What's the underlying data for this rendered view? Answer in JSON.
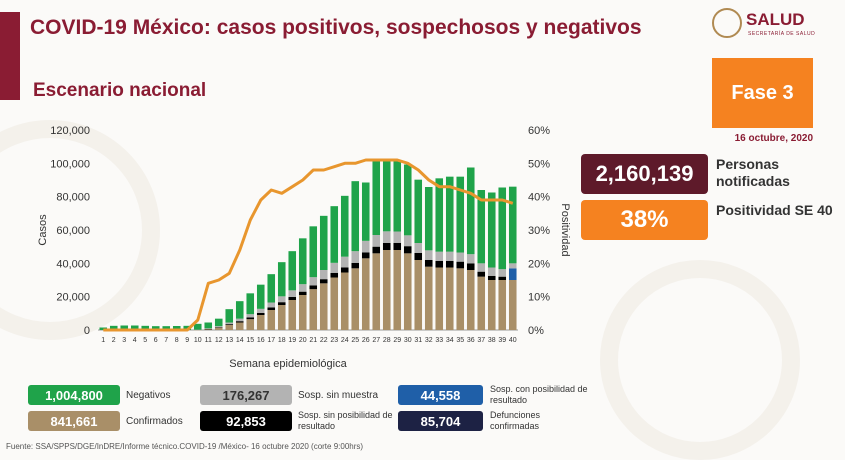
{
  "header": {
    "title": "COVID-19 México: casos positivos, sospechosos y negativos",
    "subtitle": "Escenario nacional",
    "logo_text": "SALUD",
    "logo_subtext": "SECRETARÍA DE SALUD",
    "phase_label": "Fase 3",
    "date": "16 octubre, 2020"
  },
  "kpis": [
    {
      "value": "2,160,139",
      "label": "Personas notificadas",
      "color": "#5e1a2a"
    },
    {
      "value": "38%",
      "label": "Positividad SE 40",
      "color": "#f58220"
    }
  ],
  "legend": [
    {
      "value": "1,004,800",
      "label": "Negativos",
      "color": "#1fa34a",
      "text_color": "#ffffff"
    },
    {
      "value": "176,267",
      "label": "Sosp. sin muestra",
      "color": "#b3b3b3",
      "text_color": "#333333"
    },
    {
      "value": "44,558",
      "label": "Sosp. con posibilidad de resultado",
      "color": "#1f5fa8",
      "text_color": "#ffffff"
    },
    {
      "value": "841,661",
      "label": "Confirmados",
      "color": "#a98f68",
      "text_color": "#ffffff"
    },
    {
      "value": "92,853",
      "label": "Sosp. sin posibilidad de resultado",
      "color": "#000000",
      "text_color": "#ffffff"
    },
    {
      "value": "85,704",
      "label": "Defunciones confirmadas",
      "color": "#1d2244",
      "text_color": "#ffffff"
    }
  ],
  "source": "Fuente: SSA/SPPS/DGE/InDRE/Informe técnico.COVID-19 /México- 16 octubre 2020 (corte 9:00hrs)",
  "chart_data": {
    "type": "bar",
    "stacked": true,
    "xlabel": "Semana epidemiológica",
    "ylabel": "Casos",
    "y2label": "Positividad",
    "ylim": [
      0,
      120000
    ],
    "y2lim": [
      0,
      60
    ],
    "yticks": [
      "0",
      "20,000",
      "40,000",
      "60,000",
      "80,000",
      "100,000",
      "120,000"
    ],
    "y2ticks": [
      "0%",
      "10%",
      "20%",
      "30%",
      "40%",
      "50%",
      "60%"
    ],
    "grid": false,
    "categories": [
      "1",
      "2",
      "3",
      "4",
      "5",
      "6",
      "7",
      "8",
      "9",
      "10",
      "11",
      "12",
      "13",
      "14",
      "15",
      "16",
      "17",
      "18",
      "19",
      "20",
      "21",
      "22",
      "23",
      "24",
      "25",
      "26",
      "27",
      "28",
      "29",
      "30",
      "31",
      "32",
      "33",
      "34",
      "35",
      "36",
      "37",
      "38",
      "39",
      "40"
    ],
    "series": [
      {
        "name": "Confirmados",
        "color": "#a98f68",
        "values": [
          0,
          0,
          0,
          0,
          0,
          0,
          0,
          0,
          0,
          100,
          600,
          1500,
          3000,
          4500,
          6500,
          9000,
          12000,
          15000,
          18000,
          21000,
          24500,
          28000,
          31500,
          34500,
          37000,
          43000,
          46000,
          48000,
          48000,
          46000,
          42000,
          38000,
          37500,
          37500,
          37000,
          36000,
          32000,
          30000,
          30000,
          30000
        ]
      },
      {
        "name": "Sosp. sin posibilidad de resultado",
        "color": "#000000",
        "values": [
          0,
          0,
          0,
          0,
          0,
          0,
          0,
          0,
          0,
          0,
          100,
          200,
          500,
          800,
          1000,
          1200,
          1500,
          1700,
          1800,
          2000,
          2200,
          2500,
          2800,
          3000,
          3300,
          3500,
          4000,
          4200,
          4300,
          4300,
          4200,
          4000,
          4000,
          4000,
          4000,
          4000,
          3000,
          2500,
          2000,
          0
        ]
      },
      {
        "name": "Sosp. con posibilidad de resultado",
        "color": "#1f5fa8",
        "values": [
          0,
          0,
          0,
          0,
          0,
          0,
          0,
          0,
          0,
          0,
          0,
          0,
          0,
          0,
          0,
          0,
          0,
          0,
          0,
          0,
          0,
          0,
          0,
          0,
          0,
          0,
          0,
          0,
          0,
          0,
          0,
          0,
          0,
          0,
          0,
          0,
          0,
          0,
          0,
          7000
        ]
      },
      {
        "name": "Sosp. sin muestra",
        "color": "#b3b3b3",
        "values": [
          0,
          0,
          0,
          0,
          0,
          0,
          0,
          0,
          0,
          100,
          300,
          600,
          1000,
          1500,
          2000,
          2500,
          3000,
          3500,
          4000,
          4500,
          5000,
          5500,
          6000,
          6500,
          7000,
          7000,
          7000,
          7000,
          6800,
          6500,
          6000,
          5800,
          5500,
          5500,
          5500,
          5500,
          5000,
          5000,
          4500,
          3000
        ]
      },
      {
        "name": "Negativos",
        "color": "#1fa34a",
        "values": [
          1500,
          2500,
          2700,
          2700,
          2500,
          2300,
          2300,
          2400,
          2500,
          3500,
          3500,
          4500,
          8000,
          10500,
          12500,
          14500,
          17000,
          20500,
          23500,
          27500,
          30500,
          32500,
          34000,
          36500,
          42000,
          35000,
          45000,
          42500,
          42500,
          42500,
          38000,
          38000,
          44000,
          45000,
          45500,
          52000,
          44000,
          45000,
          49000,
          46000
        ]
      }
    ],
    "line": {
      "name": "Positividad",
      "color": "#e8962e",
      "values": [
        0,
        0,
        0,
        0,
        0,
        0,
        0,
        0,
        0,
        3,
        14,
        15,
        17,
        24,
        33,
        39,
        42,
        41,
        43,
        45,
        48,
        48,
        49,
        50,
        50,
        51,
        51,
        51,
        51,
        50,
        48,
        45,
        43,
        43,
        42,
        41,
        39,
        39,
        39,
        38
      ]
    }
  }
}
